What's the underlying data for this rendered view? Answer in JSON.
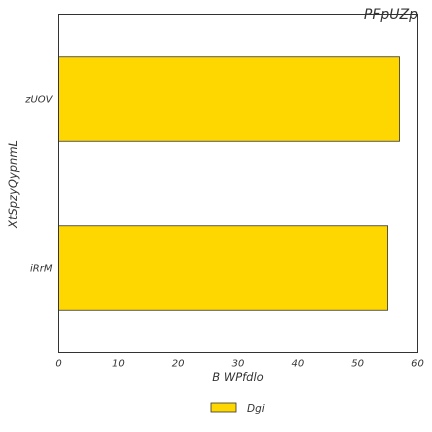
{
  "chart_data": {
    "type": "bar",
    "orientation": "horizontal",
    "title": "PFpUZp",
    "xlabel": "B WPfdlo",
    "ylabel": "XtSpzyQypnmL",
    "categories": [
      "zUOV",
      "iRrM"
    ],
    "series": [
      {
        "name": "Dgi",
        "values": [
          57,
          55
        ]
      }
    ],
    "xlim": [
      0,
      60
    ],
    "xticks": [
      0,
      10,
      20,
      30,
      40,
      50,
      60
    ],
    "grid": false,
    "legend_position": "bottom-center",
    "colors": {
      "bar": "#ffd700",
      "edge": "#333333",
      "frame": "#333333"
    }
  }
}
